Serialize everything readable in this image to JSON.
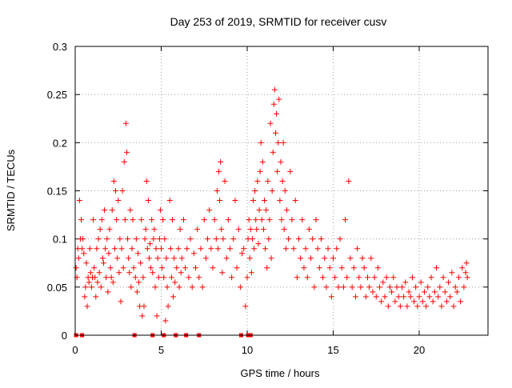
{
  "chart_data": {
    "type": "scatter",
    "title": "Day 253 of 2019, SRMTID for receiver cusv",
    "xlabel": "GPS time / hours",
    "ylabel": "SRMTID / TECUs",
    "xlim": [
      0,
      24
    ],
    "ylim": [
      0,
      0.3
    ],
    "xticks": [
      0,
      5,
      10,
      15,
      20
    ],
    "xtick_labels": [
      "0",
      "5",
      "10",
      "15",
      "20"
    ],
    "yticks": [
      0,
      0.05,
      0.1,
      0.15,
      0.2,
      0.25,
      0.3
    ],
    "ytick_labels": [
      "0",
      "0.05",
      "0.1",
      "0.15",
      "0.2",
      "0.25",
      "0.3"
    ],
    "grid": true,
    "marker": "+",
    "color": "#ff0000",
    "series": [
      {
        "name": "SRMTID",
        "points": [
          [
            0.05,
            0.07
          ],
          [
            0.1,
            0.06
          ],
          [
            0.15,
            0.09
          ],
          [
            0.2,
            0.08
          ],
          [
            0.25,
            0.14
          ],
          [
            0.3,
            0.1
          ],
          [
            0.35,
            0.12
          ],
          [
            0.4,
            0.09
          ],
          [
            0.45,
            0.1
          ],
          [
            0.5,
            0.085
          ],
          [
            0.55,
            0.04
          ],
          [
            0.6,
            0.05
          ],
          [
            0.65,
            0.075
          ],
          [
            0.7,
            0.03
          ],
          [
            0.75,
            0.06
          ],
          [
            0.8,
            0.055
          ],
          [
            0.85,
            0.09
          ],
          [
            0.9,
            0.065
          ],
          [
            0.95,
            0.05
          ],
          [
            1.0,
            0.06
          ],
          [
            1.05,
            0.12
          ],
          [
            1.1,
            0.07
          ],
          [
            1.15,
            0.06
          ],
          [
            1.2,
            0.04
          ],
          [
            1.25,
            0.09
          ],
          [
            1.3,
            0.055
          ],
          [
            1.35,
            0.1
          ],
          [
            1.4,
            0.065
          ],
          [
            1.45,
            0.11
          ],
          [
            1.5,
            0.05
          ],
          [
            1.55,
            0.12
          ],
          [
            1.6,
            0.08
          ],
          [
            1.65,
            0.075
          ],
          [
            1.7,
            0.13
          ],
          [
            1.75,
            0.09
          ],
          [
            1.8,
            0.06
          ],
          [
            1.85,
            0.1
          ],
          [
            1.9,
            0.045
          ],
          [
            1.95,
            0.085
          ],
          [
            2.0,
            0.11
          ],
          [
            2.05,
            0.07
          ],
          [
            2.1,
            0.06
          ],
          [
            2.15,
            0.13
          ],
          [
            2.2,
            0.055
          ],
          [
            2.25,
            0.16
          ],
          [
            2.3,
            0.09
          ],
          [
            2.35,
            0.15
          ],
          [
            2.4,
            0.12
          ],
          [
            2.45,
            0.08
          ],
          [
            2.5,
            0.14
          ],
          [
            2.55,
            0.065
          ],
          [
            2.6,
            0.1
          ],
          [
            2.65,
            0.035
          ],
          [
            2.7,
            0.09
          ],
          [
            2.75,
            0.15
          ],
          [
            2.8,
            0.07
          ],
          [
            2.85,
            0.18
          ],
          [
            2.9,
            0.12
          ],
          [
            2.95,
            0.22
          ],
          [
            3.0,
            0.19
          ],
          [
            3.05,
            0.1
          ],
          [
            3.1,
            0.08
          ],
          [
            3.15,
            0.065
          ],
          [
            3.2,
            0.13
          ],
          [
            3.25,
            0.05
          ],
          [
            3.3,
            0.09
          ],
          [
            3.35,
            0.12
          ],
          [
            3.4,
            0.07
          ],
          [
            3.5,
            0.06
          ],
          [
            3.55,
            0.1
          ],
          [
            3.6,
            0.045
          ],
          [
            3.65,
            0.085
          ],
          [
            3.7,
            0.055
          ],
          [
            3.75,
            0.03
          ],
          [
            3.8,
            0.075
          ],
          [
            3.85,
            0.12
          ],
          [
            3.9,
            0.02
          ],
          [
            3.95,
            0.06
          ],
          [
            4.0,
            0.03
          ],
          [
            4.05,
            0.1
          ],
          [
            4.1,
            0.11
          ],
          [
            4.15,
            0.16
          ],
          [
            4.2,
            0.09
          ],
          [
            4.25,
            0.14
          ],
          [
            4.3,
            0.08
          ],
          [
            4.35,
            0.095
          ],
          [
            4.4,
            0.07
          ],
          [
            4.45,
            0.12
          ],
          [
            4.5,
            0.065
          ],
          [
            4.55,
            0.1
          ],
          [
            4.6,
            0.11
          ],
          [
            4.65,
            0.05
          ],
          [
            4.7,
            0.09
          ],
          [
            4.75,
            0.02
          ],
          [
            4.8,
            0.08
          ],
          [
            4.85,
            0.06
          ],
          [
            4.9,
            0.1
          ],
          [
            4.95,
            0.13
          ],
          [
            5.0,
            0.09
          ],
          [
            5.05,
            0.07
          ],
          [
            5.1,
            0.12
          ],
          [
            5.15,
            0.06
          ],
          [
            5.2,
            0.1
          ],
          [
            5.25,
            0.015
          ],
          [
            5.3,
            0.08
          ],
          [
            5.35,
            0.05
          ],
          [
            5.4,
            0.03
          ],
          [
            5.5,
            0.14
          ],
          [
            5.55,
            0.09
          ],
          [
            5.6,
            0.06
          ],
          [
            5.65,
            0.12
          ],
          [
            5.7,
            0.04
          ],
          [
            5.75,
            0.08
          ],
          [
            5.8,
            0.055
          ],
          [
            5.9,
            0.07
          ],
          [
            6.0,
            0.09
          ],
          [
            6.05,
            0.05
          ],
          [
            6.1,
            0.11
          ],
          [
            6.15,
            0.065
          ],
          [
            6.2,
            0.08
          ],
          [
            6.3,
            0.12
          ],
          [
            6.4,
            0.07
          ],
          [
            6.5,
            0.09
          ],
          [
            6.6,
            0.06
          ],
          [
            6.7,
            0.1
          ],
          [
            6.8,
            0.05
          ],
          [
            6.9,
            0.085
          ],
          [
            7.0,
            0.07
          ],
          [
            7.1,
            0.11
          ],
          [
            7.2,
            0.06
          ],
          [
            7.3,
            0.09
          ],
          [
            7.4,
            0.05
          ],
          [
            7.5,
            0.12
          ],
          [
            7.6,
            0.08
          ],
          [
            7.7,
            0.1
          ],
          [
            7.8,
            0.13
          ],
          [
            7.9,
            0.09
          ],
          [
            8.0,
            0.07
          ],
          [
            8.1,
            0.12
          ],
          [
            8.2,
            0.1
          ],
          [
            8.25,
            0.15
          ],
          [
            8.3,
            0.09
          ],
          [
            8.35,
            0.17
          ],
          [
            8.4,
            0.14
          ],
          [
            8.45,
            0.18
          ],
          [
            8.5,
            0.11
          ],
          [
            8.55,
            0.065
          ],
          [
            8.6,
            0.1
          ],
          [
            8.7,
            0.16
          ],
          [
            8.8,
            0.08
          ],
          [
            8.9,
            0.12
          ],
          [
            9.0,
            0.09
          ],
          [
            9.1,
            0.06
          ],
          [
            9.2,
            0.1
          ],
          [
            9.3,
            0.14
          ],
          [
            9.4,
            0.07
          ],
          [
            9.5,
            0.11
          ],
          [
            9.6,
            0.05
          ],
          [
            9.7,
            0.085
          ],
          [
            9.8,
            0.09
          ],
          [
            9.9,
            0.03
          ],
          [
            10.0,
            0.06
          ],
          [
            10.05,
            0.1
          ],
          [
            10.1,
            0.12
          ],
          [
            10.15,
            0.08
          ],
          [
            10.2,
            0.11
          ],
          [
            10.25,
            0.065
          ],
          [
            10.3,
            0.1
          ],
          [
            10.35,
            0.14
          ],
          [
            10.4,
            0.09
          ],
          [
            10.45,
            0.15
          ],
          [
            10.5,
            0.12
          ],
          [
            10.55,
            0.11
          ],
          [
            10.6,
            0.16
          ],
          [
            10.65,
            0.095
          ],
          [
            10.7,
            0.13
          ],
          [
            10.75,
            0.17
          ],
          [
            10.8,
            0.2
          ],
          [
            10.85,
            0.12
          ],
          [
            10.9,
            0.18
          ],
          [
            10.95,
            0.11
          ],
          [
            11.0,
            0.14
          ],
          [
            11.05,
            0.09
          ],
          [
            11.1,
            0.13
          ],
          [
            11.15,
            0.07
          ],
          [
            11.2,
            0.16
          ],
          [
            11.25,
            0.1
          ],
          [
            11.3,
            0.12
          ],
          [
            11.35,
            0.22
          ],
          [
            11.4,
            0.08
          ],
          [
            11.45,
            0.15
          ],
          [
            11.5,
            0.19
          ],
          [
            11.55,
            0.24
          ],
          [
            11.6,
            0.255
          ],
          [
            11.65,
            0.21
          ],
          [
            11.7,
            0.23
          ],
          [
            11.75,
            0.17
          ],
          [
            11.8,
            0.2
          ],
          [
            11.85,
            0.245
          ],
          [
            11.9,
            0.14
          ],
          [
            11.95,
            0.18
          ],
          [
            12.0,
            0.12
          ],
          [
            12.05,
            0.16
          ],
          [
            12.1,
            0.2
          ],
          [
            12.15,
            0.11
          ],
          [
            12.2,
            0.15
          ],
          [
            12.25,
            0.09
          ],
          [
            12.3,
            0.13
          ],
          [
            12.4,
            0.1
          ],
          [
            12.5,
            0.17
          ],
          [
            12.6,
            0.12
          ],
          [
            12.7,
            0.09
          ],
          [
            12.8,
            0.14
          ],
          [
            12.9,
            0.06
          ],
          [
            13.0,
            0.1
          ],
          [
            13.1,
            0.08
          ],
          [
            13.2,
            0.12
          ],
          [
            13.3,
            0.07
          ],
          [
            13.4,
            0.09
          ],
          [
            13.5,
            0.06
          ],
          [
            13.6,
            0.11
          ],
          [
            13.7,
            0.08
          ],
          [
            13.8,
            0.1
          ],
          [
            13.9,
            0.05
          ],
          [
            14.0,
            0.12
          ],
          [
            14.1,
            0.09
          ],
          [
            14.2,
            0.07
          ],
          [
            14.3,
            0.1
          ],
          [
            14.4,
            0.06
          ],
          [
            14.5,
            0.08
          ],
          [
            14.6,
            0.05
          ],
          [
            14.7,
            0.09
          ],
          [
            14.8,
            0.07
          ],
          [
            14.9,
            0.04
          ],
          [
            15.0,
            0.08
          ],
          [
            15.1,
            0.06
          ],
          [
            15.2,
            0.09
          ],
          [
            15.3,
            0.05
          ],
          [
            15.4,
            0.1
          ],
          [
            15.5,
            0.07
          ],
          [
            15.6,
            0.05
          ],
          [
            15.7,
            0.12
          ],
          [
            15.8,
            0.06
          ],
          [
            15.9,
            0.16
          ],
          [
            16.0,
            0.08
          ],
          [
            16.1,
            0.05
          ],
          [
            16.2,
            0.07
          ],
          [
            16.3,
            0.04
          ],
          [
            16.4,
            0.09
          ],
          [
            16.5,
            0.06
          ],
          [
            16.6,
            0.05
          ],
          [
            16.7,
            0.08
          ],
          [
            16.8,
            0.07
          ],
          [
            16.9,
            0.04
          ],
          [
            17.0,
            0.06
          ],
          [
            17.1,
            0.05
          ],
          [
            17.2,
            0.08
          ],
          [
            17.3,
            0.045
          ],
          [
            17.4,
            0.06
          ],
          [
            17.5,
            0.04
          ],
          [
            17.6,
            0.07
          ],
          [
            17.7,
            0.05
          ],
          [
            17.8,
            0.035
          ],
          [
            17.9,
            0.055
          ],
          [
            18.0,
            0.04
          ],
          [
            18.1,
            0.06
          ],
          [
            18.2,
            0.03
          ],
          [
            18.3,
            0.05
          ],
          [
            18.4,
            0.045
          ],
          [
            18.5,
            0.06
          ],
          [
            18.6,
            0.035
          ],
          [
            18.7,
            0.05
          ],
          [
            18.8,
            0.04
          ],
          [
            18.9,
            0.03
          ],
          [
            19.0,
            0.05
          ],
          [
            19.1,
            0.04
          ],
          [
            19.2,
            0.055
          ],
          [
            19.3,
            0.03
          ],
          [
            19.4,
            0.045
          ],
          [
            19.5,
            0.04
          ],
          [
            19.6,
            0.06
          ],
          [
            19.7,
            0.035
          ],
          [
            19.8,
            0.05
          ],
          [
            19.9,
            0.03
          ],
          [
            20.0,
            0.04
          ],
          [
            20.1,
            0.055
          ],
          [
            20.2,
            0.035
          ],
          [
            20.3,
            0.045
          ],
          [
            20.4,
            0.03
          ],
          [
            20.5,
            0.05
          ],
          [
            20.6,
            0.04
          ],
          [
            20.7,
            0.06
          ],
          [
            20.8,
            0.035
          ],
          [
            20.9,
            0.045
          ],
          [
            21.0,
            0.07
          ],
          [
            21.1,
            0.04
          ],
          [
            21.2,
            0.05
          ],
          [
            21.3,
            0.03
          ],
          [
            21.4,
            0.06
          ],
          [
            21.5,
            0.045
          ],
          [
            21.6,
            0.035
          ],
          [
            21.7,
            0.055
          ],
          [
            21.8,
            0.04
          ],
          [
            21.9,
            0.065
          ],
          [
            22.0,
            0.03
          ],
          [
            22.1,
            0.05
          ],
          [
            22.2,
            0.045
          ],
          [
            22.3,
            0.06
          ],
          [
            22.4,
            0.035
          ],
          [
            22.5,
            0.07
          ],
          [
            22.6,
            0.05
          ],
          [
            22.7,
            0.065
          ],
          [
            22.75,
            0.075
          ],
          [
            22.8,
            0.06
          ]
        ]
      }
    ],
    "zero_markers": [
      0.05,
      0.4,
      3.45,
      4.5,
      5.15,
      5.85,
      6.45,
      7.2,
      9.65,
      10.05,
      10.2
    ]
  }
}
